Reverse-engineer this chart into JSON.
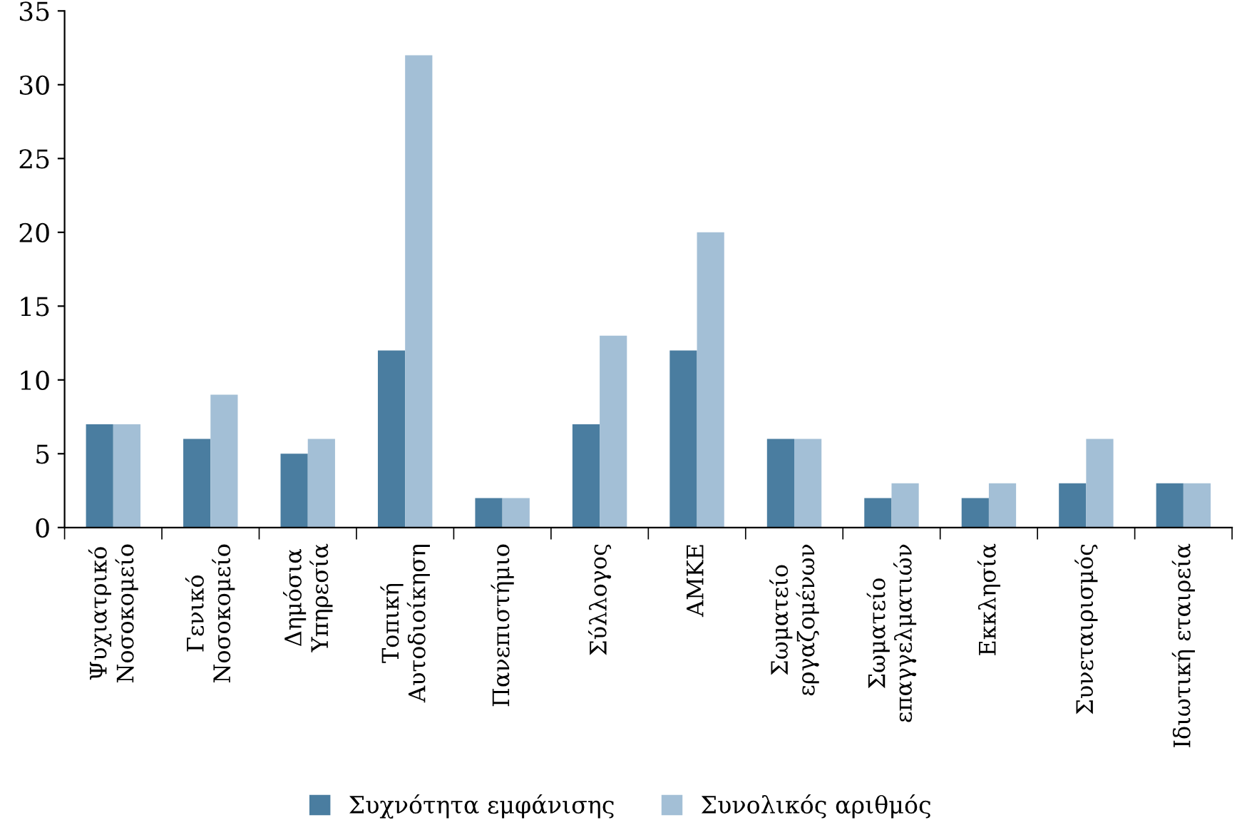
{
  "chart_data": {
    "type": "bar",
    "categories": [
      "Ψυχιατρικό\nΝοσοκομείο",
      "Γενικό\nΝοσοκομείο",
      "Δημόσια\nΥπηρεσία",
      "Τοπική\nΑυτοδιοίκηση",
      "Πανεπιστήμιο",
      "Σύλλογος",
      "ΑΜΚΕ",
      "Σωματείο\nεργαζομένων",
      "Σωματείο\nεπαγγελματιών",
      "Εκκλησία",
      "Συνεταιρισμός",
      "Ιδιωτική εταιρεία"
    ],
    "series": [
      {
        "name": "Συχνότητα εμφάνισης",
        "color": "#4a7da0",
        "values": [
          7,
          6,
          5,
          12,
          2,
          7,
          12,
          6,
          2,
          2,
          3,
          3
        ]
      },
      {
        "name": "Συνολικός αριθμός",
        "color": "#a3bfd6",
        "values": [
          7,
          9,
          6,
          32,
          2,
          13,
          20,
          6,
          3,
          3,
          6,
          3
        ]
      }
    ],
    "ylim": [
      0,
      35
    ],
    "yticks": [
      0,
      5,
      10,
      15,
      20,
      25,
      30,
      35
    ],
    "grid": false,
    "legend": "bottom"
  }
}
